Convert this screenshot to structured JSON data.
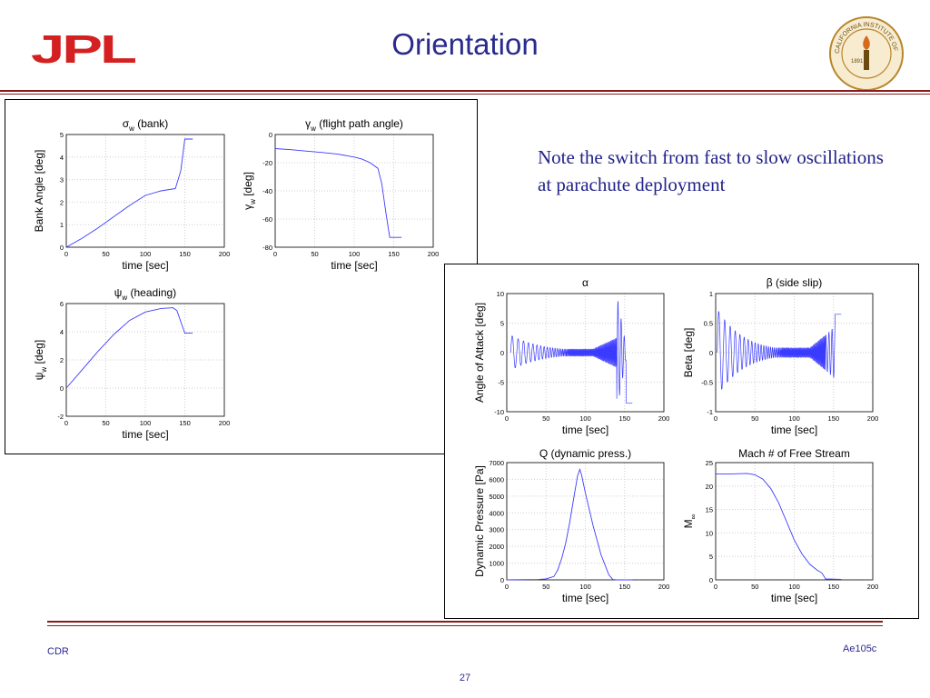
{
  "slide": {
    "title": "Orientation",
    "note": "Note the switch from fast to slow oscillations at parachute deployment",
    "footer_left": "CDR",
    "footer_right": "Ae105c",
    "page_number": "27",
    "logo_text": "JPL",
    "seal_text": "CALIFORNIA INSTITUTE OF TECHNOLOGY",
    "seal_year": "1891",
    "colors": {
      "title": "#2b2b8f",
      "rule": "#8b1a1a",
      "logo": "#d42020",
      "line": "#3b3bff",
      "seal": "#b8862b"
    }
  },
  "chart_data": [
    {
      "id": "bank",
      "type": "line",
      "title_symbol": "σ",
      "title_sub": "w",
      "title_rest": " (bank)",
      "ylabel": "Bank Angle [deg]",
      "xlabel": "time [sec]",
      "xlim": [
        0,
        200
      ],
      "ylim": [
        0,
        5
      ],
      "xticks": [
        "0",
        "50",
        "100",
        "150",
        "200"
      ],
      "yticks": [
        "0",
        "1",
        "2",
        "3",
        "4",
        "5"
      ],
      "series": [
        {
          "x": [
            0,
            20,
            40,
            60,
            80,
            100,
            120,
            138,
            145,
            150,
            153,
            160
          ],
          "y": [
            0,
            0.4,
            0.85,
            1.35,
            1.85,
            2.3,
            2.5,
            2.6,
            3.4,
            4.8,
            4.8,
            4.8
          ]
        }
      ]
    },
    {
      "id": "fpa",
      "type": "line",
      "title_symbol": "γ",
      "title_sub": "w",
      "title_rest": " (flight path angle)",
      "ylabel_symbol": "γ",
      "ylabel_sub": "w",
      "ylabel_rest": " [deg]",
      "xlabel": "time [sec]",
      "xlim": [
        0,
        200
      ],
      "ylim": [
        -80,
        0
      ],
      "xticks": [
        "0",
        "50",
        "100",
        "150",
        "200"
      ],
      "yticks": [
        "-80",
        "-60",
        "-40",
        "-20",
        "0"
      ],
      "series": [
        {
          "x": [
            0,
            20,
            40,
            60,
            80,
            100,
            110,
            120,
            130,
            135,
            140,
            145,
            150,
            160
          ],
          "y": [
            -10,
            -10.8,
            -11.8,
            -12.8,
            -14,
            -16,
            -17.5,
            -20,
            -24,
            -35,
            -55,
            -73,
            -73,
            -73
          ]
        }
      ]
    },
    {
      "id": "heading",
      "type": "line",
      "title_symbol": "ψ",
      "title_sub": "w",
      "title_rest": " (heading)",
      "ylabel_symbol": "ψ",
      "ylabel_sub": "w",
      "ylabel_rest": " [deg]",
      "xlabel": "time [sec]",
      "xlim": [
        0,
        200
      ],
      "ylim": [
        -2,
        6
      ],
      "xticks": [
        "0",
        "50",
        "100",
        "150",
        "200"
      ],
      "yticks": [
        "-2",
        "0",
        "2",
        "4",
        "6"
      ],
      "series": [
        {
          "x": [
            0,
            20,
            40,
            60,
            80,
            100,
            120,
            135,
            140,
            145,
            150,
            160
          ],
          "y": [
            0,
            1.3,
            2.6,
            3.8,
            4.8,
            5.4,
            5.65,
            5.7,
            5.5,
            4.7,
            3.9,
            3.9
          ]
        }
      ]
    },
    {
      "id": "alpha",
      "type": "line",
      "title_symbol": "α",
      "title_sub": "",
      "title_rest": "",
      "ylabel": "Angle of Attack [deg]",
      "xlabel": "time [sec]",
      "xlim": [
        0,
        200
      ],
      "ylim": [
        -10,
        10
      ],
      "xticks": [
        "0",
        "50",
        "100",
        "150",
        "200"
      ],
      "yticks": [
        "-10",
        "-5",
        "0",
        "5",
        "10"
      ],
      "oscillation": {
        "t_start": 5,
        "t_end": 160,
        "fast_end": 110,
        "deploy": 140,
        "amp_start": 3,
        "amp_mid": 0.6,
        "amp_late": 2.5,
        "spike_max": 9,
        "final": -8.5
      }
    },
    {
      "id": "beta",
      "type": "line",
      "title_symbol": "β",
      "title_sub": "",
      "title_rest": " (side slip)",
      "ylabel": "Beta [deg]",
      "xlabel": "time [sec]",
      "xlim": [
        0,
        200
      ],
      "ylim": [
        -1,
        1
      ],
      "xticks": [
        "0",
        "50",
        "100",
        "150",
        "200"
      ],
      "yticks": [
        "-1",
        "-0.5",
        "0",
        "0.5",
        "1"
      ],
      "oscillation": {
        "t_start": 2,
        "t_end": 160,
        "fast_end": 120,
        "deploy": 140,
        "amp_start": 0.75,
        "amp_mid": 0.08,
        "amp_late": 0.3,
        "final": 0.65
      }
    },
    {
      "id": "q",
      "type": "line",
      "title": "Q (dynamic press.)",
      "ylabel": "Dynamic Pressure [Pa]",
      "xlabel": "time [sec]",
      "xlim": [
        0,
        200
      ],
      "ylim": [
        0,
        7000
      ],
      "xticks": [
        "0",
        "50",
        "100",
        "150",
        "200"
      ],
      "yticks": [
        "0",
        "1000",
        "2000",
        "3000",
        "4000",
        "5000",
        "6000",
        "7000"
      ],
      "series": [
        {
          "x": [
            0,
            40,
            50,
            60,
            65,
            70,
            75,
            80,
            85,
            90,
            93,
            95,
            100,
            110,
            120,
            130,
            135,
            140,
            160
          ],
          "y": [
            0,
            20,
            60,
            200,
            600,
            1300,
            2200,
            3400,
            4800,
            6200,
            6600,
            6300,
            5200,
            3200,
            1500,
            300,
            20,
            0,
            0
          ]
        }
      ]
    },
    {
      "id": "mach",
      "type": "line",
      "title": "Mach # of Free Stream",
      "ylabel_symbol": "M",
      "ylabel_sub": "∞",
      "ylabel_rest": "",
      "xlabel": "time [sec]",
      "xlim": [
        0,
        200
      ],
      "ylim": [
        0,
        25
      ],
      "xticks": [
        "0",
        "50",
        "100",
        "150",
        "200"
      ],
      "yticks": [
        "0",
        "5",
        "10",
        "15",
        "20",
        "25"
      ],
      "series": [
        {
          "x": [
            0,
            20,
            40,
            50,
            60,
            70,
            80,
            90,
            100,
            110,
            120,
            130,
            135,
            140,
            160
          ],
          "y": [
            22.6,
            22.6,
            22.7,
            22.4,
            21.5,
            19.5,
            16.5,
            12.5,
            8.5,
            5.5,
            3.3,
            2.0,
            1.5,
            0.2,
            0.1
          ]
        }
      ]
    }
  ]
}
